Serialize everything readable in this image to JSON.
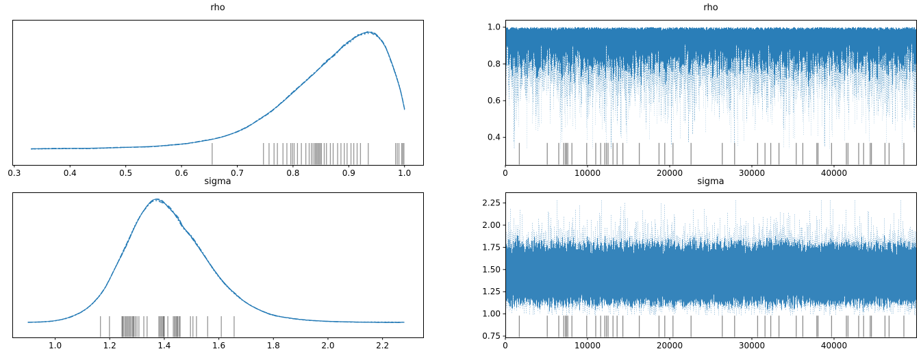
{
  "figure_title": "",
  "chart_data": [
    {
      "type": "kde",
      "panel": "top-left",
      "title": "rho",
      "parameter": "rho",
      "line_color": "#1f77b4",
      "rug_color": "#2e2e2e",
      "n_chains": 4,
      "xlim": [
        0.2965,
        1.0335
      ],
      "xticks": [
        "0.3",
        "0.4",
        "0.5",
        "0.6",
        "0.7",
        "0.8",
        "0.9",
        "1.0"
      ],
      "xtick_values": [
        0.3,
        0.4,
        0.5,
        0.6,
        0.7,
        0.8,
        0.9,
        1.0
      ],
      "yticks": [],
      "series_x": [
        0.33,
        0.36,
        0.4,
        0.44,
        0.48,
        0.52,
        0.55,
        0.58,
        0.61,
        0.64,
        0.66,
        0.68,
        0.7,
        0.72,
        0.74,
        0.76,
        0.78,
        0.8,
        0.82,
        0.84,
        0.86,
        0.875,
        0.89,
        0.905,
        0.915,
        0.925,
        0.935,
        0.945,
        0.955,
        0.965,
        0.975,
        0.985,
        0.993,
        1.0
      ],
      "series_density": [
        0.015,
        0.016,
        0.018,
        0.02,
        0.024,
        0.03,
        0.036,
        0.046,
        0.06,
        0.082,
        0.1,
        0.125,
        0.16,
        0.205,
        0.265,
        0.33,
        0.405,
        0.49,
        0.575,
        0.66,
        0.75,
        0.815,
        0.88,
        0.935,
        0.965,
        0.99,
        1.0,
        0.99,
        0.95,
        0.88,
        0.77,
        0.63,
        0.5,
        0.35
      ],
      "rug_values": [
        0.655,
        0.747,
        0.757,
        0.766,
        0.772,
        0.782,
        0.789,
        0.796,
        0.799,
        0.802,
        0.808,
        0.815,
        0.823,
        0.829,
        0.833,
        0.836,
        0.839,
        0.841,
        0.843,
        0.845,
        0.847,
        0.849,
        0.851,
        0.856,
        0.86,
        0.867,
        0.872,
        0.88,
        0.886,
        0.892,
        0.897,
        0.904,
        0.909,
        0.915,
        0.921,
        0.935,
        0.984,
        0.987,
        0.99,
        0.995,
        0.997,
        0.999
      ]
    },
    {
      "type": "trace",
      "panel": "top-right",
      "title": "rho",
      "parameter": "rho",
      "line_color": "#1f77b4",
      "rug_color": "#2e2e2e",
      "n_chains": 4,
      "n_draws": 50000,
      "xlim": [
        0,
        49999
      ],
      "ylim": [
        0.25,
        1.04
      ],
      "xticks": [
        "0",
        "10000",
        "20000",
        "30000",
        "40000"
      ],
      "xtick_values": [
        0,
        10000,
        20000,
        30000,
        40000
      ],
      "yticks": [
        "0.4",
        "0.6",
        "0.8",
        "1.0"
      ],
      "ytick_values": [
        0.4,
        0.6,
        0.8,
        1.0
      ],
      "value_range": [
        0.33,
        1.0
      ],
      "dense_band": [
        0.8,
        1.0
      ],
      "typical_band": [
        0.55,
        1.0
      ],
      "rug_top_value": 0.37,
      "rug_draws": [
        1700,
        5100,
        6500,
        7100,
        7300,
        7450,
        7600,
        8100,
        9900,
        11000,
        11600,
        12100,
        12300,
        12500,
        13100,
        13600,
        14300,
        16300,
        18700,
        19400,
        20400,
        22600,
        26400,
        27900,
        30700,
        31600,
        32300,
        33300,
        35400,
        36200,
        37900,
        38050,
        39700,
        41500,
        41700,
        43000,
        43600,
        44400,
        44550,
        46200,
        46700,
        48500
      ],
      "profile": {
        "kind": "ceiling",
        "top": 1.0,
        "top_jitter": 0.006,
        "dense_bottom_mean": 0.8,
        "dense_bottom_sd": 0.045,
        "mid_offset": 0.05,
        "mid_tail_mean": 0.07,
        "tail_mean": 0.07,
        "deep_prob": 0.04,
        "deep_min": 0.36,
        "deep_max": 0.52,
        "floor": 0.34
      }
    },
    {
      "type": "kde",
      "panel": "bottom-left",
      "title": "sigma",
      "parameter": "sigma",
      "line_color": "#1f77b4",
      "rug_color": "#2e2e2e",
      "n_chains": 4,
      "xlim": [
        0.843,
        2.349
      ],
      "xticks": [
        "1.0",
        "1.2",
        "1.4",
        "1.6",
        "1.8",
        "2.0",
        "2.2"
      ],
      "xtick_values": [
        1.0,
        1.2,
        1.4,
        1.6,
        1.8,
        2.0,
        2.2
      ],
      "yticks": [],
      "series_x": [
        0.9,
        0.95,
        1.0,
        1.05,
        1.1,
        1.14,
        1.18,
        1.22,
        1.26,
        1.3,
        1.33,
        1.36,
        1.39,
        1.42,
        1.45,
        1.47,
        1.5,
        1.54,
        1.58,
        1.62,
        1.66,
        1.7,
        1.75,
        1.8,
        1.86,
        1.92,
        2.0,
        2.08,
        2.16,
        2.24,
        2.28
      ],
      "series_density": [
        0.012,
        0.015,
        0.025,
        0.05,
        0.1,
        0.17,
        0.28,
        0.45,
        0.63,
        0.82,
        0.93,
        1.0,
        0.99,
        0.93,
        0.85,
        0.78,
        0.7,
        0.57,
        0.44,
        0.33,
        0.24,
        0.17,
        0.11,
        0.07,
        0.045,
        0.03,
        0.02,
        0.015,
        0.012,
        0.012,
        0.012
      ],
      "rug_values": [
        1.166,
        1.199,
        1.245,
        1.247,
        1.25,
        1.255,
        1.259,
        1.263,
        1.267,
        1.271,
        1.275,
        1.279,
        1.284,
        1.286,
        1.289,
        1.294,
        1.3,
        1.307,
        1.325,
        1.337,
        1.38,
        1.384,
        1.388,
        1.392,
        1.396,
        1.398,
        1.4,
        1.413,
        1.433,
        1.437,
        1.441,
        1.445,
        1.447,
        1.45,
        1.455,
        1.458,
        1.496,
        1.505,
        1.518,
        1.559,
        1.609,
        1.656
      ]
    },
    {
      "type": "trace",
      "panel": "bottom-right",
      "title": "sigma",
      "parameter": "sigma",
      "line_color": "#1f77b4",
      "rug_color": "#2e2e2e",
      "n_chains": 4,
      "n_draws": 50000,
      "xlim": [
        0,
        49999
      ],
      "ylim": [
        0.735,
        2.37
      ],
      "xticks": [
        "0",
        "10000",
        "20000",
        "30000",
        "40000"
      ],
      "xtick_values": [
        0,
        10000,
        20000,
        30000,
        40000
      ],
      "yticks": [
        "0.75",
        "1.00",
        "1.25",
        "1.50",
        "1.75",
        "2.00",
        "2.25"
      ],
      "ytick_values": [
        0.75,
        1.0,
        1.25,
        1.5,
        1.75,
        2.0,
        2.25
      ],
      "value_range": [
        0.98,
        2.29
      ],
      "dense_band": [
        1.12,
        1.78
      ],
      "typical_band": [
        1.0,
        2.0
      ],
      "rug_top_value": 0.98,
      "rug_draws": [
        1700,
        5100,
        6500,
        7100,
        7300,
        7450,
        7600,
        8100,
        9900,
        11000,
        11600,
        12100,
        12300,
        12500,
        13100,
        13600,
        14300,
        16300,
        18700,
        19400,
        20400,
        22600,
        26400,
        27900,
        30700,
        31600,
        32300,
        33300,
        35400,
        36200,
        37900,
        38050,
        39700,
        41500,
        41700,
        43000,
        43600,
        44400,
        44550,
        46200,
        46700,
        48500
      ],
      "profile": {
        "kind": "band",
        "core_top_mean": 1.78,
        "core_top_sd": 0.04,
        "core_bot_mean": 1.12,
        "core_bot_sd": 0.035,
        "up_offset": 0.02,
        "up_tail_mean": 0.11,
        "up_max": 2.28,
        "down_offset": 0.01,
        "down_tail_mean": 0.045,
        "down_min": 0.985
      }
    }
  ]
}
